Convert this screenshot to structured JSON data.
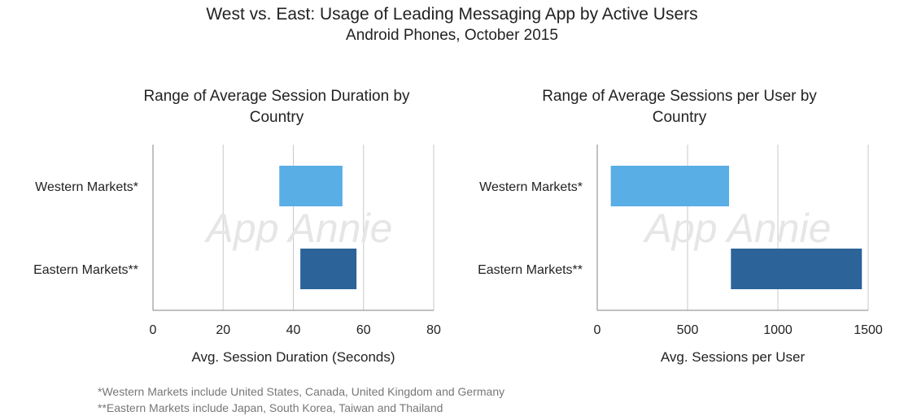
{
  "header": {
    "title": "West vs. East:  Usage of Leading Messaging App by Active Users",
    "subtitle": "Android Phones, October 2015"
  },
  "footnotes": [
    "*Western Markets include United States, Canada, United Kingdom and Germany",
    "**Eastern Markets include Japan, South Korea, Taiwan and Thailand"
  ],
  "watermark": "App Annie",
  "colors": {
    "western": "#5aaee6",
    "eastern": "#2c6399",
    "grid": "#c8c8c8"
  },
  "chart_data": [
    {
      "type": "bar",
      "orientation": "horizontal-range",
      "title_lines": [
        "Range of Average Session Duration by",
        "Country"
      ],
      "categories": [
        "Western Markets*",
        "Eastern Markets**"
      ],
      "ranges": [
        [
          36,
          54
        ],
        [
          42,
          58
        ]
      ],
      "xlabel": "Avg. Session Duration (Seconds)",
      "xlim": [
        0,
        80
      ],
      "xticks": [
        0,
        20,
        40,
        60,
        80
      ],
      "grid": true
    },
    {
      "type": "bar",
      "orientation": "horizontal-range",
      "title_lines": [
        "Range of Average Sessions per User by",
        "Country"
      ],
      "categories": [
        "Western Markets*",
        "Eastern Markets**"
      ],
      "ranges": [
        [
          75,
          730
        ],
        [
          740,
          1465
        ]
      ],
      "xlabel": "Avg. Sessions per User",
      "xlim": [
        0,
        1500
      ],
      "xticks": [
        0,
        500,
        1000,
        1500
      ],
      "grid": true
    }
  ]
}
